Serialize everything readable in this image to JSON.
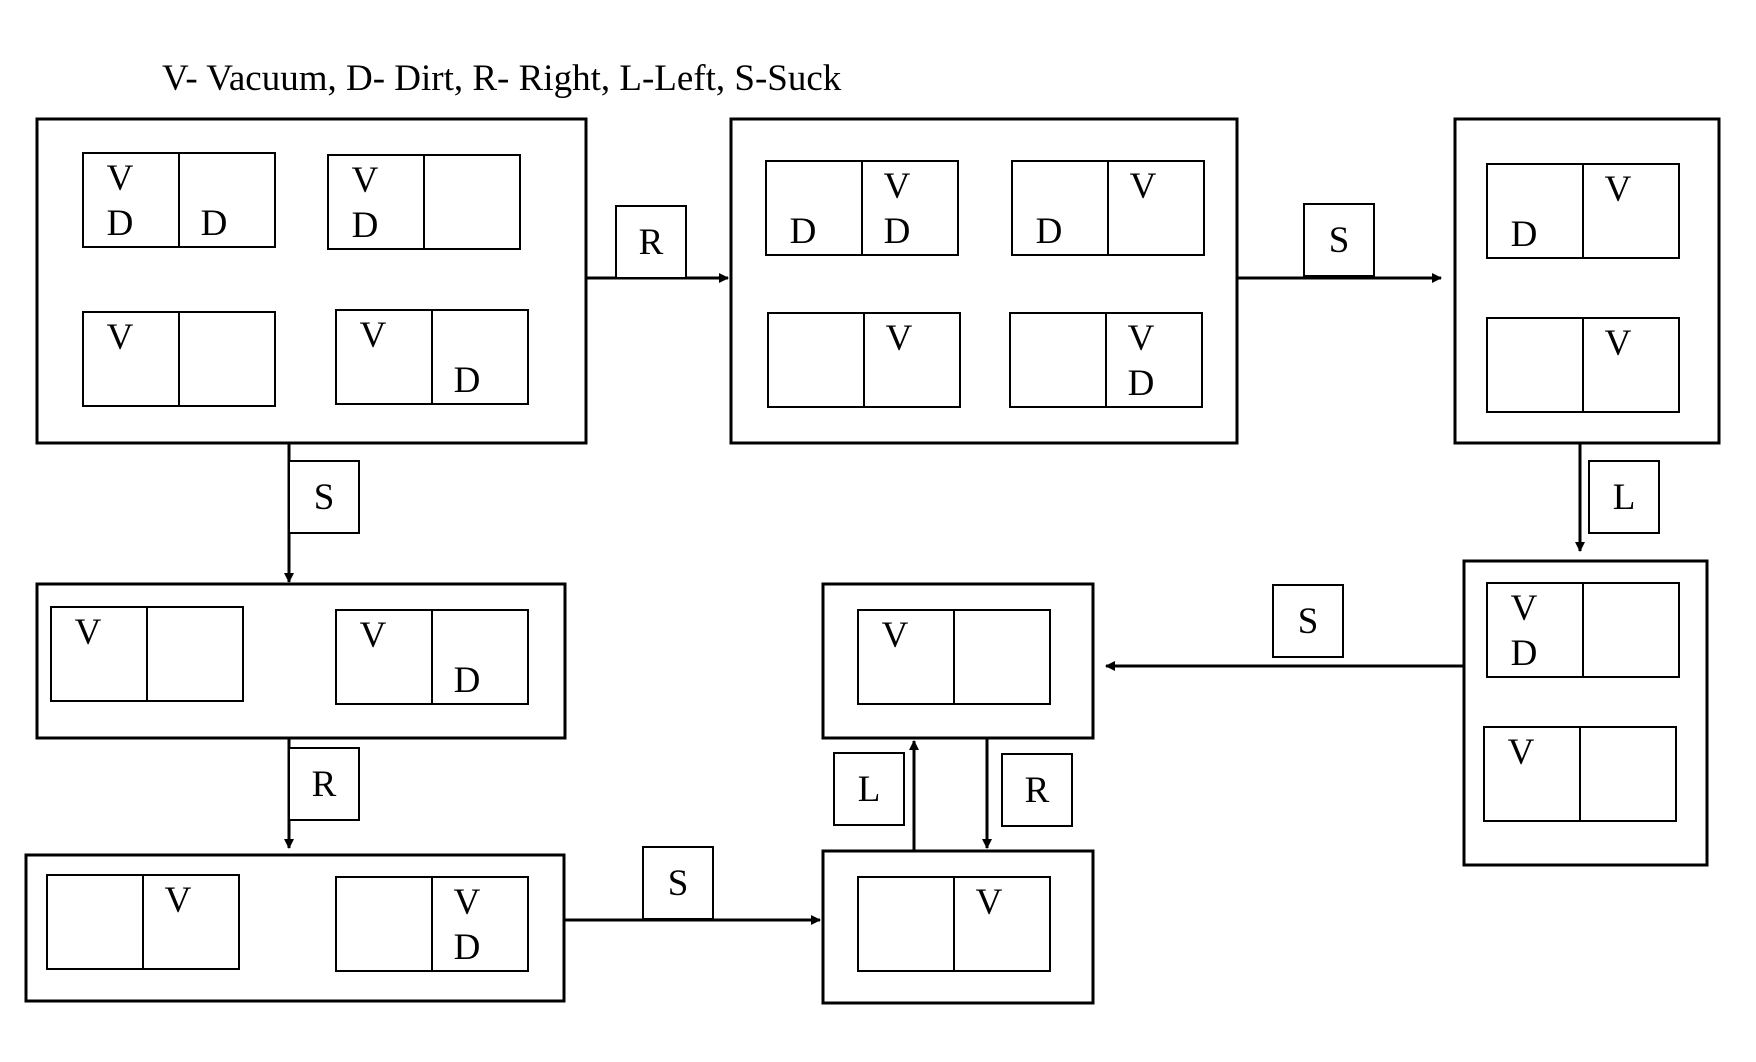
{
  "legend": "V- Vacuum, D- Dirt, R- Right, L-Left, S-Suck",
  "symbols": {
    "vacuum": "V",
    "dirt": "D"
  },
  "states": [
    {
      "id": "s1",
      "configs": [
        {
          "left": [
            "V",
            "D"
          ],
          "right": [
            "D"
          ]
        },
        {
          "left": [
            "V",
            "D"
          ],
          "right": []
        },
        {
          "left": [
            "V"
          ],
          "right": []
        },
        {
          "left": [
            "V"
          ],
          "right": [
            "D"
          ]
        }
      ]
    },
    {
      "id": "s2",
      "configs": [
        {
          "left": [
            "D"
          ],
          "right": [
            "V",
            "D"
          ]
        },
        {
          "left": [
            "D"
          ],
          "right": [
            "V"
          ]
        },
        {
          "left": [],
          "right": [
            "V"
          ]
        },
        {
          "left": [],
          "right": [
            "V",
            "D"
          ]
        }
      ]
    },
    {
      "id": "s3",
      "configs": [
        {
          "left": [
            "D"
          ],
          "right": [
            "V"
          ]
        },
        {
          "left": [],
          "right": [
            "V"
          ]
        }
      ]
    },
    {
      "id": "s4",
      "configs": [
        {
          "left": [
            "V",
            "D"
          ],
          "right": []
        },
        {
          "left": [
            "V"
          ],
          "right": []
        }
      ]
    },
    {
      "id": "s5",
      "configs": [
        {
          "left": [
            "V"
          ],
          "right": []
        }
      ]
    },
    {
      "id": "s6",
      "configs": [
        {
          "left": [
            "V"
          ],
          "right": []
        },
        {
          "left": [
            "V"
          ],
          "right": [
            "D"
          ]
        }
      ]
    },
    {
      "id": "s7",
      "configs": [
        {
          "left": [],
          "right": [
            "V"
          ]
        },
        {
          "left": [],
          "right": [
            "V",
            "D"
          ]
        }
      ]
    },
    {
      "id": "s8",
      "configs": [
        {
          "left": [],
          "right": [
            "V"
          ]
        }
      ]
    }
  ],
  "transitions": [
    {
      "from": "s1",
      "to": "s2",
      "action": "R"
    },
    {
      "from": "s2",
      "to": "s3",
      "action": "S"
    },
    {
      "from": "s3",
      "to": "s4",
      "action": "L"
    },
    {
      "from": "s4",
      "to": "s5",
      "action": "S"
    },
    {
      "from": "s1",
      "to": "s6",
      "action": "S"
    },
    {
      "from": "s6",
      "to": "s7",
      "action": "R"
    },
    {
      "from": "s7",
      "to": "s8",
      "action": "S"
    },
    {
      "from": "s8",
      "to": "s5",
      "action": "L"
    },
    {
      "from": "s5",
      "to": "s8",
      "action": "R"
    }
  ]
}
